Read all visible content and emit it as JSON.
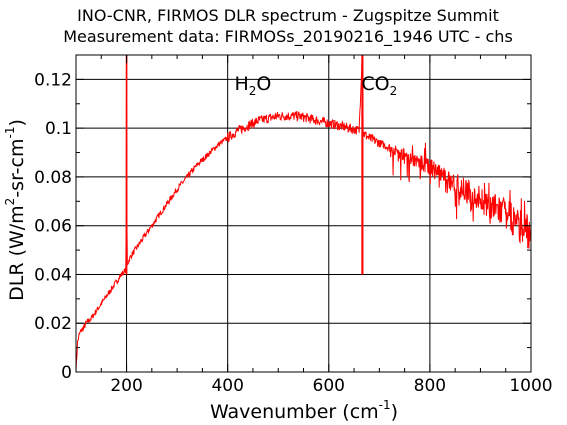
{
  "chart_data": {
    "type": "line",
    "title": "INO-CNR, FIRMOS DLR spectrum - Zugspitze Summit",
    "subtitle": "Measurement data: FIRMOSs_20190216_1946 UTC - chs",
    "xlabel": {
      "main": "Wavenumber (cm",
      "sup": "-1",
      "close": ")"
    },
    "ylabel": {
      "p1": "DLR (W/m",
      "sup1": "2",
      "p2": "-sr-cm",
      "sup2": "-1",
      "p3": ")"
    },
    "xlim": [
      100,
      1000
    ],
    "ylim": [
      0,
      0.13
    ],
    "xticks": [
      200,
      400,
      600,
      800,
      1000
    ],
    "yticks": [
      0,
      0.02,
      0.04,
      0.06,
      0.08,
      0.1,
      0.12
    ],
    "ytick_labels": [
      "0",
      "0.02",
      "0.04",
      "0.06",
      "0.08",
      "0.1",
      "0.12"
    ],
    "grid": true,
    "line_color": "#ff0000",
    "annotations": [
      {
        "base": "H",
        "sub": "2",
        "rest": "O",
        "x": 450,
        "y": 0.123
      },
      {
        "base": "CO",
        "sub": "2",
        "rest": "",
        "x": 700,
        "y": 0.123
      }
    ],
    "series": [
      {
        "x": [
          100,
          103,
          106,
          110,
          115,
          120,
          130,
          140,
          150,
          160,
          170,
          180,
          190,
          199,
          200,
          201,
          205,
          210,
          220,
          230,
          240,
          250,
          260,
          270,
          280,
          290,
          300,
          320,
          340,
          360,
          380,
          400,
          420,
          440,
          460,
          480,
          500,
          520,
          540,
          560,
          580,
          600,
          620,
          640,
          660,
          666,
          667,
          668,
          680,
          700,
          720,
          740,
          760,
          780,
          800,
          820,
          840,
          860,
          880,
          900,
          920,
          940,
          960,
          980,
          1000
        ],
        "y": [
          0.0,
          0.012,
          0.015,
          0.017,
          0.018,
          0.02,
          0.022,
          0.025,
          0.028,
          0.031,
          0.034,
          0.037,
          0.04,
          0.042,
          0.13,
          0.044,
          0.046,
          0.048,
          0.051,
          0.054,
          0.057,
          0.06,
          0.063,
          0.066,
          0.069,
          0.072,
          0.075,
          0.08,
          0.085,
          0.089,
          0.093,
          0.096,
          0.099,
          0.101,
          0.103,
          0.104,
          0.105,
          0.105,
          0.105,
          0.104,
          0.103,
          0.102,
          0.101,
          0.1,
          0.099,
          0.13,
          0.13,
          0.098,
          0.096,
          0.094,
          0.092,
          0.09,
          0.088,
          0.086,
          0.084,
          0.081,
          0.078,
          0.076,
          0.073,
          0.071,
          0.068,
          0.066,
          0.063,
          0.06,
          0.057
        ]
      }
    ]
  }
}
